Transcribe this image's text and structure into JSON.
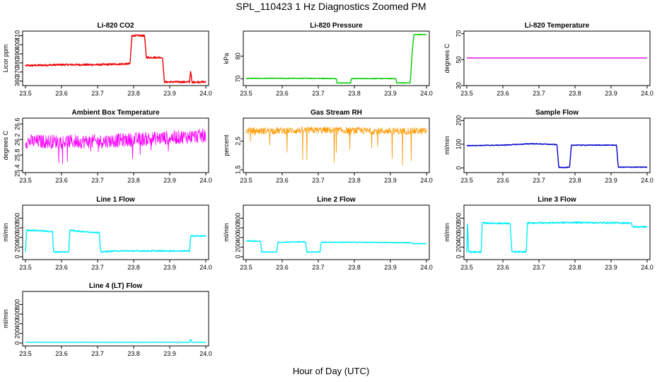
{
  "title": "SPL_110423 1 Hz Diagnostics Zoomed PM",
  "xlabel": "Hour of Day (UTC)",
  "chart_data": [
    {
      "type": "line",
      "title": "Li-820 CO2",
      "ylabel": "Licor ppm",
      "color": "#ee0000",
      "xlim": [
        23.5,
        24.0
      ],
      "ylim": [
        355,
        415
      ],
      "yticks": [
        360,
        370,
        380,
        390,
        400,
        410
      ],
      "xticks": [
        23.5,
        23.6,
        23.7,
        23.8,
        23.9,
        24.0
      ],
      "series": [
        {
          "x": [
            23.5,
            23.6,
            23.7,
            23.79,
            23.795,
            23.83,
            23.835,
            23.88,
            23.885,
            23.955,
            23.958,
            23.962,
            23.965,
            24.0
          ],
          "y": [
            377,
            378,
            378,
            379,
            410,
            410,
            386,
            386,
            359,
            359,
            372,
            357,
            359,
            359
          ],
          "noise": 1
        }
      ]
    },
    {
      "type": "line",
      "title": "Li-820 Pressure",
      "ylabel": "kPa",
      "color": "#00cc00",
      "xlim": [
        23.5,
        24.0
      ],
      "ylim": [
        67,
        91
      ],
      "yticks": [
        70,
        80
      ],
      "xticks": [
        23.5,
        23.6,
        23.7,
        23.8,
        23.9,
        24.0
      ],
      "series": [
        {
          "x": [
            23.5,
            23.6,
            23.7,
            23.75,
            23.752,
            23.79,
            23.792,
            23.915,
            23.917,
            23.955,
            23.96,
            23.965,
            24.0
          ],
          "y": [
            70.2,
            70.2,
            70.2,
            70.1,
            68.2,
            68.2,
            70.1,
            70.1,
            68.2,
            68.2,
            81,
            89.5,
            89.5
          ],
          "noise": 0.15
        }
      ]
    },
    {
      "type": "line",
      "title": "Li-820 Temperature",
      "ylabel": "degrees C",
      "color": "#dd00dd",
      "xlim": [
        23.5,
        24.0
      ],
      "ylim": [
        30,
        72
      ],
      "yticks": [
        30,
        50,
        70
      ],
      "xticks": [
        23.5,
        23.6,
        23.7,
        23.8,
        23.9,
        24.0
      ],
      "series": [
        {
          "x": [
            23.5,
            24.0
          ],
          "y": [
            51.3,
            51.3
          ],
          "noise": 0
        }
      ]
    },
    {
      "type": "line",
      "title": "Ambient Box Temperature",
      "ylabel": "degrees C",
      "color": "#ff00ff",
      "xlim": [
        23.5,
        24.0
      ],
      "ylim": [
        25.35,
        26.75
      ],
      "yticks": [
        25.4,
        25.8,
        26.2,
        26.6
      ],
      "xticks": [
        23.5,
        23.6,
        23.7,
        23.8,
        23.9,
        24.0
      ],
      "series": [
        {
          "x": [
            23.5,
            23.6,
            23.7,
            23.8,
            23.9,
            24.0
          ],
          "y": [
            26.15,
            26.15,
            26.15,
            26.2,
            26.25,
            26.3
          ],
          "noise": 0.18,
          "spikes": -0.5
        }
      ]
    },
    {
      "type": "line",
      "title": "Gas Stream RH",
      "ylabel": "percent",
      "color": "#ff9900",
      "xlim": [
        23.5,
        24.0
      ],
      "ylim": [
        1.4,
        3.3
      ],
      "yticks": [
        1.5,
        2.5
      ],
      "xticks": [
        23.5,
        23.6,
        23.7,
        23.8,
        23.9,
        24.0
      ],
      "series": [
        {
          "x": [
            23.5,
            23.7,
            23.9,
            24.0
          ],
          "y": [
            2.85,
            2.88,
            2.85,
            2.85
          ],
          "noise": 0.12,
          "spikes": -1.2
        }
      ]
    },
    {
      "type": "line",
      "title": "Sample Flow",
      "ylabel": "ml/min",
      "color": "#0000cc",
      "xlim": [
        23.5,
        24.0
      ],
      "ylim": [
        -20,
        210
      ],
      "yticks": [
        0,
        100,
        200
      ],
      "xticks": [
        23.5,
        23.6,
        23.7,
        23.8,
        23.9,
        24.0
      ],
      "series": [
        {
          "x": [
            23.5,
            23.6,
            23.68,
            23.72,
            23.75,
            23.755,
            23.785,
            23.79,
            23.915,
            23.92,
            24.0
          ],
          "y": [
            94,
            96,
            102,
            100,
            98,
            2,
            2,
            96,
            96,
            3,
            3
          ],
          "noise": 1.5
        }
      ]
    },
    {
      "type": "line",
      "title": "Line 1 Flow",
      "ylabel": "ml/min",
      "color": "#00eeff",
      "xlim": [
        23.5,
        24.0
      ],
      "ylim": [
        -60,
        1070
      ],
      "yticks": [
        0,
        200,
        400,
        600,
        800
      ],
      "xticks": [
        23.5,
        23.6,
        23.7,
        23.8,
        23.9,
        24.0
      ],
      "series": [
        {
          "x": [
            23.5,
            23.503,
            23.54,
            23.575,
            23.578,
            23.62,
            23.623,
            23.66,
            23.705,
            23.708,
            23.75,
            23.955,
            23.958,
            24.0
          ],
          "y": [
            100,
            550,
            540,
            520,
            100,
            100,
            550,
            520,
            500,
            100,
            120,
            120,
            430,
            430
          ],
          "noise": 12
        }
      ]
    },
    {
      "type": "line",
      "title": "Line 2 Flow",
      "ylabel": "ml/min",
      "color": "#00eeff",
      "xlim": [
        23.5,
        24.0
      ],
      "ylim": [
        -60,
        1070
      ],
      "yticks": [
        0,
        200,
        400,
        600,
        800
      ],
      "xticks": [
        23.5,
        23.6,
        23.7,
        23.8,
        23.9,
        24.0
      ],
      "series": [
        {
          "x": [
            23.5,
            23.54,
            23.543,
            23.585,
            23.588,
            23.665,
            23.668,
            23.705,
            23.708,
            23.8,
            23.96,
            23.965,
            24.0
          ],
          "y": [
            330,
            320,
            100,
            100,
            300,
            310,
            100,
            100,
            300,
            300,
            290,
            270,
            270
          ],
          "noise": 8
        }
      ]
    },
    {
      "type": "line",
      "title": "Line 3 Flow",
      "ylabel": "ml/min",
      "color": "#00eeff",
      "xlim": [
        23.5,
        24.0
      ],
      "ylim": [
        -60,
        1070
      ],
      "yticks": [
        0,
        200,
        400,
        600,
        800
      ],
      "xticks": [
        23.5,
        23.6,
        23.7,
        23.8,
        23.9,
        24.0
      ],
      "series": [
        {
          "x": [
            23.5,
            23.502,
            23.505,
            23.54,
            23.543,
            23.62,
            23.625,
            23.665,
            23.668,
            23.8,
            23.955,
            23.96,
            24.0
          ],
          "y": [
            100,
            700,
            100,
            100,
            700,
            690,
            100,
            100,
            700,
            710,
            700,
            620,
            620
          ],
          "noise": 15
        }
      ]
    },
    {
      "type": "line",
      "title": "Line 4 (LT) Flow",
      "ylabel": "ml/min",
      "color": "#00eeff",
      "xlim": [
        23.5,
        24.0
      ],
      "ylim": [
        -60,
        1070
      ],
      "yticks": [
        0,
        200,
        400,
        600,
        800
      ],
      "xticks": [
        23.5,
        23.6,
        23.7,
        23.8,
        23.9,
        24.0
      ],
      "series": [
        {
          "x": [
            23.5,
            23.955,
            23.958,
            23.962,
            24.0
          ],
          "y": [
            15,
            15,
            80,
            15,
            15
          ],
          "noise": 2
        }
      ]
    }
  ]
}
